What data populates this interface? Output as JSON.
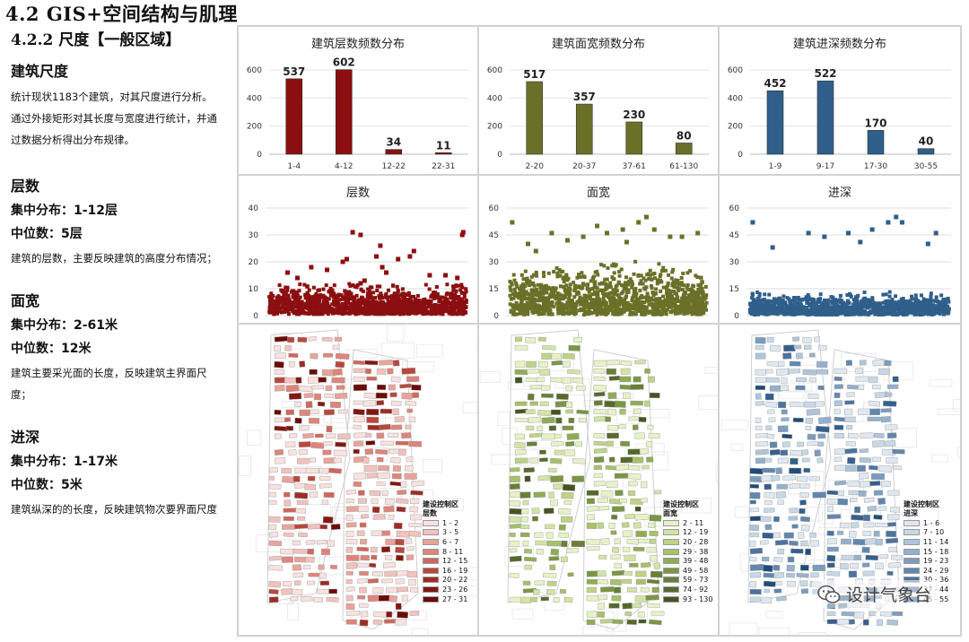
{
  "header": {
    "title": "4.2 GIS+空间结构与肌理",
    "subtitle": "4.2.2 尺度【一般区域】"
  },
  "sidebar": {
    "intro": {
      "title": "建筑尺度",
      "text": "统计现状1183个建筑，对其尺度进行分析。\n通过外接矩形对其长度与宽度进行统计，并通过数据分析得出分布规律。"
    },
    "sections": [
      {
        "title": "层数",
        "range": "集中分布：1-12层",
        "median": "中位数：5层",
        "desc": "建筑的层数，主要反映建筑的高度分布情况；"
      },
      {
        "title": "面宽",
        "range": "集中分布：2-61米",
        "median": "中位数：12米",
        "desc": "建筑主要采光面的长度，反映建筑主界面尺度；"
      },
      {
        "title": "进深",
        "range": "集中分布：1-17米",
        "median": "中位数：5米",
        "desc": "建筑纵深的的长度，反映建筑物次要界面尺度"
      }
    ]
  },
  "colors": {
    "floors": "#8b0f10",
    "width": "#6b7028",
    "depth": "#2f5f8a"
  },
  "chart_data": [
    {
      "type": "bar",
      "title": "建筑层数频数分布",
      "categories": [
        "1-4",
        "4-12",
        "12-22",
        "22-31"
      ],
      "values": [
        537,
        602,
        34,
        11
      ],
      "ylim": [
        0,
        600
      ],
      "yticks": [
        0,
        200,
        400,
        600
      ],
      "color": "#8b0f10"
    },
    {
      "type": "bar",
      "title": "建筑面宽频数分布",
      "categories": [
        "2-20",
        "20-37",
        "37-61",
        "61-130"
      ],
      "values": [
        517,
        357,
        230,
        80
      ],
      "ylim": [
        0,
        600
      ],
      "yticks": [
        0,
        200,
        400,
        600
      ],
      "color": "#6b7028"
    },
    {
      "type": "bar",
      "title": "建筑进深频数分布",
      "categories": [
        "1-9",
        "9-17",
        "17-30",
        "30-55"
      ],
      "values": [
        452,
        522,
        170,
        40
      ],
      "ylim": [
        0,
        600
      ],
      "yticks": [
        0,
        200,
        400,
        600
      ],
      "color": "#2f5f8a"
    },
    {
      "type": "scatter",
      "title": "层数",
      "ylim": [
        0,
        40
      ],
      "yticks": [
        0,
        10,
        20,
        30,
        40
      ],
      "color": "#8b0f10",
      "n": 1183,
      "median": 5,
      "highlights": [
        [
          0.22,
          18
        ],
        [
          0.3,
          17
        ],
        [
          0.38,
          20
        ],
        [
          0.4,
          21
        ],
        [
          0.47,
          12
        ],
        [
          0.49,
          13
        ],
        [
          0.55,
          22
        ],
        [
          0.43,
          31
        ],
        [
          0.47,
          30
        ],
        [
          0.58,
          18
        ],
        [
          0.6,
          16
        ],
        [
          0.66,
          21
        ],
        [
          0.72,
          22
        ],
        [
          0.74,
          24
        ],
        [
          0.82,
          15
        ],
        [
          0.9,
          15
        ],
        [
          0.96,
          14
        ],
        [
          0.985,
          30
        ],
        [
          0.99,
          31
        ],
        [
          0.1,
          16
        ],
        [
          0.15,
          14
        ],
        [
          0.57,
          26
        ]
      ]
    },
    {
      "type": "scatter",
      "title": "面宽",
      "ylim": [
        0,
        60
      ],
      "yticks": [
        0,
        15,
        30,
        45,
        60
      ],
      "color": "#6b7028",
      "n": 1183,
      "median": 12,
      "highlights": [
        [
          0.02,
          52
        ],
        [
          0.1,
          40
        ],
        [
          0.22,
          46
        ],
        [
          0.45,
          50
        ],
        [
          0.5,
          46
        ],
        [
          0.58,
          48
        ],
        [
          0.66,
          52
        ],
        [
          0.7,
          55
        ],
        [
          0.74,
          48
        ],
        [
          0.82,
          44
        ],
        [
          0.88,
          44
        ],
        [
          0.96,
          46
        ],
        [
          0.3,
          42
        ],
        [
          0.38,
          44
        ],
        [
          0.6,
          41
        ],
        [
          0.14,
          36
        ]
      ]
    },
    {
      "type": "scatter",
      "title": "进深",
      "ylim": [
        0,
        60
      ],
      "yticks": [
        0,
        15,
        30,
        45,
        60
      ],
      "color": "#2f5f8a",
      "n": 1183,
      "median": 5,
      "highlights": [
        [
          0.02,
          52
        ],
        [
          0.3,
          46
        ],
        [
          0.38,
          44
        ],
        [
          0.5,
          46
        ],
        [
          0.62,
          48
        ],
        [
          0.7,
          52
        ],
        [
          0.74,
          55
        ],
        [
          0.77,
          52
        ],
        [
          0.94,
          46
        ],
        [
          0.9,
          40
        ],
        [
          0.56,
          41
        ],
        [
          0.12,
          38
        ]
      ]
    }
  ],
  "maps": [
    {
      "legend_title": "建设控制区",
      "legend_subtitle": "层数",
      "classes": [
        "1 - 2",
        "3 - 5",
        "6 - 7",
        "8 - 11",
        "12 - 15",
        "16 - 19",
        "20 - 22",
        "23 - 26",
        "27 - 31"
      ],
      "colors": [
        "#f8e1df",
        "#f1c2bd",
        "#e8a39b",
        "#de857b",
        "#d0675c",
        "#b8473d",
        "#9d2d25",
        "#821811",
        "#6b0b06"
      ]
    },
    {
      "legend_title": "建设控制区",
      "legend_subtitle": "面宽",
      "classes": [
        "2 - 11",
        "12 - 19",
        "20 - 28",
        "29 - 38",
        "39 - 48",
        "49 - 58",
        "59 - 73",
        "74 - 92",
        "93 - 130"
      ],
      "colors": [
        "#e7f1c6",
        "#d2e3a5",
        "#bdd386",
        "#a6c06b",
        "#8fac55",
        "#7a9645",
        "#687f38",
        "#56692d",
        "#455522"
      ]
    },
    {
      "legend_title": "建设控制区",
      "legend_subtitle": "进深",
      "classes": [
        "1 - 6",
        "7 - 10",
        "11 - 14",
        "15 - 18",
        "19 - 23",
        "24 - 29",
        "30 - 36",
        "37 - 44",
        "45 - 55"
      ],
      "colors": [
        "#dfe8f1",
        "#c7d7e6",
        "#aec4da",
        "#94b0cc",
        "#7b9cbe",
        "#6287af",
        "#4b739e",
        "#355f8c",
        "#214c79"
      ]
    }
  ],
  "watermark": "设计气象台"
}
